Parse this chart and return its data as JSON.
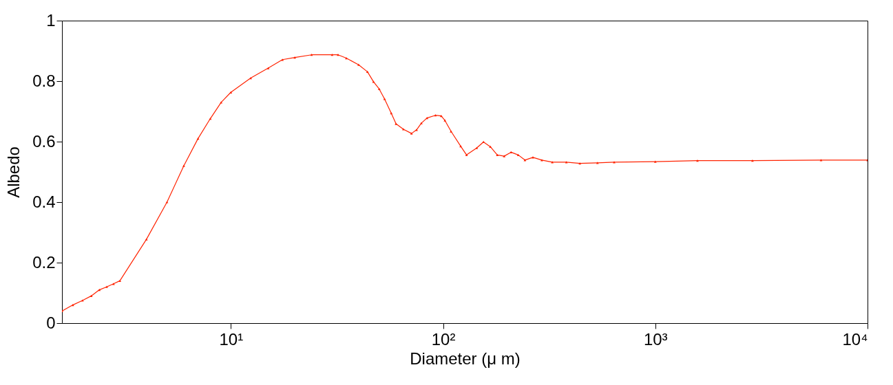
{
  "chart_data": {
    "type": "line",
    "xlabel": "Diameter (μ m)",
    "ylabel": "Albedo",
    "log": "x",
    "xlim": [
      1.6,
      10000
    ],
    "ylim": [
      0,
      1
    ],
    "xticks": [
      {
        "value": 10,
        "label": "10¹"
      },
      {
        "value": 100,
        "label": "10²"
      },
      {
        "value": 1000,
        "label": "10³"
      },
      {
        "value": 10000,
        "label": "10⁴"
      }
    ],
    "yticks": [
      0,
      0.2,
      0.4,
      0.6,
      0.8,
      1
    ],
    "grid": false,
    "marker": "triangle",
    "line_style": "solid",
    "series": [
      {
        "color": "#ff2200",
        "x": [
          1.6,
          1.8,
          2.0,
          2.2,
          2.4,
          2.6,
          2.8,
          3,
          4,
          5,
          6,
          7,
          8,
          9,
          10,
          12.4,
          15,
          17.5,
          20,
          24,
          30,
          32,
          35,
          40,
          44,
          47,
          50,
          53,
          57,
          60,
          65,
          71,
          75,
          79,
          84,
          92,
          98,
          102,
          109,
          121,
          129,
          144,
          155,
          167,
          180,
          194,
          209,
          226,
          243,
          265,
          292,
          327,
          381,
          441,
          534,
          640,
          1000,
          1580,
          2870,
          6040,
          10000
        ],
        "values": [
          0.04,
          0.06,
          0.075,
          0.09,
          0.11,
          0.12,
          0.13,
          0.14,
          0.277,
          0.4,
          0.52,
          0.61,
          0.676,
          0.73,
          0.763,
          0.81,
          0.843,
          0.871,
          0.878,
          0.887,
          0.887,
          0.887,
          0.876,
          0.854,
          0.831,
          0.798,
          0.774,
          0.741,
          0.694,
          0.659,
          0.641,
          0.627,
          0.639,
          0.661,
          0.678,
          0.687,
          0.685,
          0.67,
          0.634,
          0.585,
          0.556,
          0.579,
          0.599,
          0.583,
          0.556,
          0.552,
          0.565,
          0.556,
          0.539,
          0.548,
          0.539,
          0.532,
          0.532,
          0.528,
          0.53,
          0.532,
          0.534,
          0.537,
          0.537,
          0.539,
          0.539
        ]
      }
    ]
  }
}
